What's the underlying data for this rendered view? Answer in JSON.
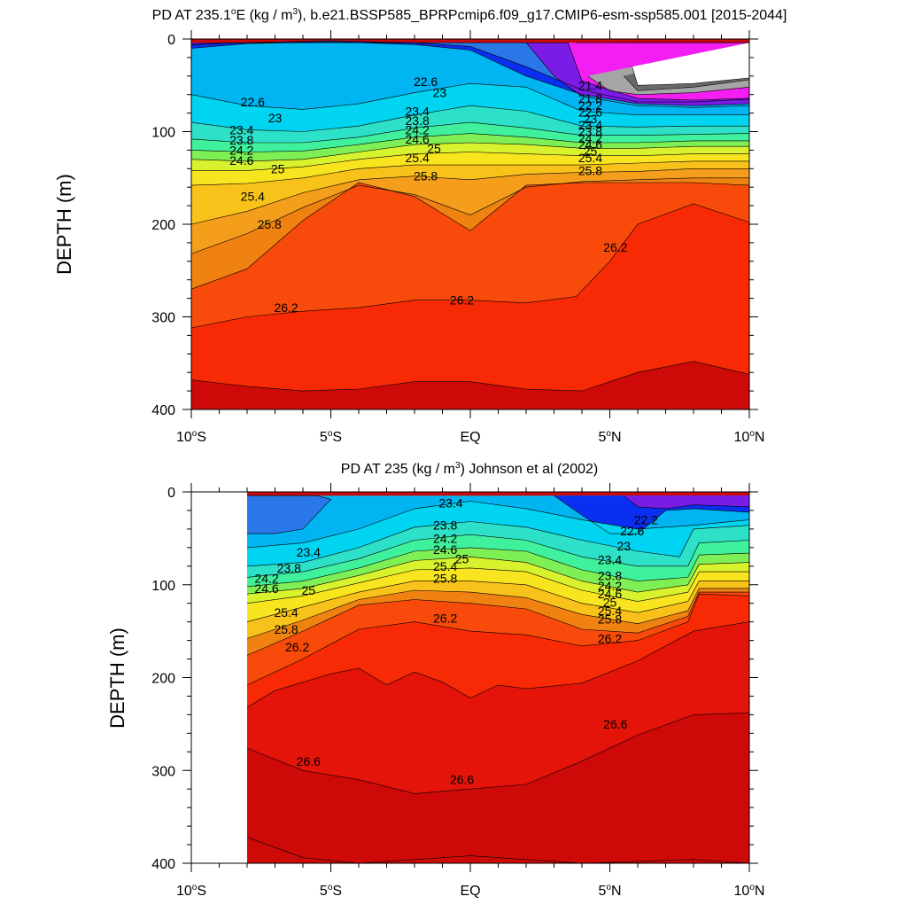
{
  "palette": [
    "#2a78e8",
    "#0a2ff0",
    "#7a1be6",
    "#f31ff2",
    "#a5a5a5",
    "#6a6a6a",
    "#ffffff",
    "#00b5f2",
    "#00d4f0",
    "#2de0c8",
    "#3ff09c",
    "#7ef056",
    "#d8f22e",
    "#f8e41f",
    "#f9c21b",
    "#f49e1c",
    "#f08212",
    "#f84a0a",
    "#f82a05",
    "#e5140a",
    "#cd0a08"
  ],
  "chart_data": [
    {
      "type": "contour",
      "title_main": "PD AT 235.1",
      "title_deg": "o",
      "title_mid": "E (kg / m",
      "title_sup": "3",
      "title_rest": "), b.e21.BSSP585_BPRPcmip6.f09_g17.CMIP6-esm-ssp585.001 [2015-2044]",
      "ylabel": "DEPTH (m)",
      "ylim": [
        0,
        400
      ],
      "y_ticks": [
        "0",
        "100",
        "200",
        "300",
        "400"
      ],
      "x_ticks": [
        {
          "pre": "10",
          "deg": "o",
          "post": "S"
        },
        {
          "pre": "5",
          "deg": "o",
          "post": "S"
        },
        {
          "pre": "EQ",
          "deg": "",
          "post": ""
        },
        {
          "pre": "5",
          "deg": "o",
          "post": "N"
        },
        {
          "pre": "10",
          "deg": "o",
          "post": "N"
        }
      ],
      "x_range": [
        -10,
        10
      ],
      "data_start": -10,
      "contour_labels": [
        {
          "text": "22.6",
          "lat": -7.8,
          "depth": 68
        },
        {
          "text": "23",
          "lat": -7.0,
          "depth": 85
        },
        {
          "text": "23.4",
          "lat": -8.2,
          "depth": 98
        },
        {
          "text": "23.8",
          "lat": -8.2,
          "depth": 109
        },
        {
          "text": "24.2",
          "lat": -8.2,
          "depth": 120
        },
        {
          "text": "24.6",
          "lat": -8.2,
          "depth": 131
        },
        {
          "text": "25",
          "lat": -6.9,
          "depth": 140
        },
        {
          "text": "25.4",
          "lat": -7.8,
          "depth": 170
        },
        {
          "text": "25.8",
          "lat": -7.2,
          "depth": 200
        },
        {
          "text": "26.2",
          "lat": -6.6,
          "depth": 290
        },
        {
          "text": "22.6",
          "lat": -1.6,
          "depth": 46
        },
        {
          "text": "23",
          "lat": -1.1,
          "depth": 58
        },
        {
          "text": "23.4",
          "lat": -1.9,
          "depth": 78
        },
        {
          "text": "23.8",
          "lat": -1.9,
          "depth": 88
        },
        {
          "text": "24.2",
          "lat": -1.9,
          "depth": 98
        },
        {
          "text": "24.6",
          "lat": -1.9,
          "depth": 108
        },
        {
          "text": "25",
          "lat": -1.3,
          "depth": 118
        },
        {
          "text": "25.4",
          "lat": -1.9,
          "depth": 128
        },
        {
          "text": "25.8",
          "lat": -1.6,
          "depth": 148
        },
        {
          "text": "26.2",
          "lat": -0.3,
          "depth": 282
        },
        {
          "text": "21.4",
          "lat": 4.3,
          "depth": 50
        },
        {
          "text": "21.8",
          "lat": 4.3,
          "depth": 64
        },
        {
          "text": "22.2",
          "lat": 4.3,
          "depth": 72
        },
        {
          "text": "22.6",
          "lat": 4.3,
          "depth": 79
        },
        {
          "text": "23",
          "lat": 4.3,
          "depth": 86
        },
        {
          "text": "23.4",
          "lat": 4.3,
          "depth": 93
        },
        {
          "text": "23.8",
          "lat": 4.3,
          "depth": 100
        },
        {
          "text": "24.2",
          "lat": 4.3,
          "depth": 107
        },
        {
          "text": "24.6",
          "lat": 4.3,
          "depth": 114
        },
        {
          "text": "25",
          "lat": 4.3,
          "depth": 121
        },
        {
          "text": "25.4",
          "lat": 4.3,
          "depth": 128
        },
        {
          "text": "25.8",
          "lat": 4.3,
          "depth": 142
        },
        {
          "text": "26.2",
          "lat": 5.2,
          "depth": 225
        }
      ]
    },
    {
      "type": "contour",
      "title_main": "PD AT 235 (kg / m",
      "title_deg": "",
      "title_mid": "",
      "title_sup": "3",
      "title_rest": ") Johnson et al (2002)",
      "ylabel": "DEPTH (m)",
      "ylim": [
        0,
        400
      ],
      "y_ticks": [
        "0",
        "100",
        "200",
        "300",
        "400"
      ],
      "x_ticks": [
        {
          "pre": "10",
          "deg": "o",
          "post": "S"
        },
        {
          "pre": "5",
          "deg": "o",
          "post": "S"
        },
        {
          "pre": "EQ",
          "deg": "",
          "post": ""
        },
        {
          "pre": "5",
          "deg": "o",
          "post": "N"
        },
        {
          "pre": "10",
          "deg": "o",
          "post": "N"
        }
      ],
      "x_range": [
        -10,
        10
      ],
      "data_start": -8,
      "contour_labels": [
        {
          "text": "23.4",
          "lat": -5.8,
          "depth": 65
        },
        {
          "text": "23.8",
          "lat": -6.5,
          "depth": 82
        },
        {
          "text": "24.2",
          "lat": -7.3,
          "depth": 93
        },
        {
          "text": "24.6",
          "lat": -7.3,
          "depth": 104
        },
        {
          "text": "25",
          "lat": -5.8,
          "depth": 106
        },
        {
          "text": "25.4",
          "lat": -6.6,
          "depth": 130
        },
        {
          "text": "25.8",
          "lat": -6.6,
          "depth": 148
        },
        {
          "text": "26.2",
          "lat": -6.2,
          "depth": 167
        },
        {
          "text": "26.6",
          "lat": -5.8,
          "depth": 290
        },
        {
          "text": "23.4",
          "lat": -0.7,
          "depth": 12
        },
        {
          "text": "23.8",
          "lat": -0.9,
          "depth": 36
        },
        {
          "text": "24.2",
          "lat": -0.9,
          "depth": 50
        },
        {
          "text": "24.6",
          "lat": -0.9,
          "depth": 62
        },
        {
          "text": "25",
          "lat": -0.3,
          "depth": 72
        },
        {
          "text": "25.4",
          "lat": -0.9,
          "depth": 80
        },
        {
          "text": "25.8",
          "lat": -0.9,
          "depth": 93
        },
        {
          "text": "26.2",
          "lat": -0.9,
          "depth": 136
        },
        {
          "text": "26.6",
          "lat": -0.3,
          "depth": 310
        },
        {
          "text": "22.2",
          "lat": 6.3,
          "depth": 30
        },
        {
          "text": "22.6",
          "lat": 5.8,
          "depth": 42
        },
        {
          "text": "23",
          "lat": 5.5,
          "depth": 58
        },
        {
          "text": "23.4",
          "lat": 5.0,
          "depth": 73
        },
        {
          "text": "23.8",
          "lat": 5.0,
          "depth": 90
        },
        {
          "text": "24.2",
          "lat": 5.0,
          "depth": 101
        },
        {
          "text": "24.6",
          "lat": 5.0,
          "depth": 110
        },
        {
          "text": "25",
          "lat": 5.0,
          "depth": 119
        },
        {
          "text": "25.4",
          "lat": 5.0,
          "depth": 128
        },
        {
          "text": "25.8",
          "lat": 5.0,
          "depth": 137
        },
        {
          "text": "26.2",
          "lat": 5.0,
          "depth": 158
        },
        {
          "text": "26.6",
          "lat": 5.2,
          "depth": 250
        }
      ]
    }
  ]
}
